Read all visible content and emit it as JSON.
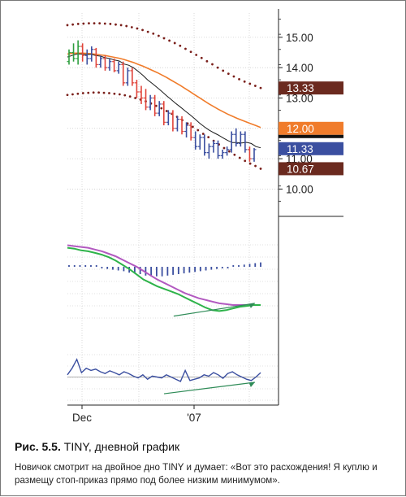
{
  "chart_data": [
    {
      "type": "bar",
      "panel": "price",
      "subtype": "ohlc",
      "x_labels": [
        "Dec",
        "'07"
      ],
      "y_ticks": [
        10.0,
        11.0,
        12.0,
        13.0,
        14.0,
        15.0
      ],
      "y_tick_labels": [
        "10.00",
        "11.00",
        "12.00",
        "13.00",
        "14.00",
        "15.00"
      ],
      "ylim": [
        9.1,
        15.8
      ],
      "price_tags": [
        {
          "label": "13.33",
          "value": 13.33,
          "color": "#6b2a1f"
        },
        {
          "label": "12.00",
          "value": 12.0,
          "color": "#f07c2b"
        },
        {
          "label": "11.33",
          "value": 11.33,
          "color": "#3b4fa0"
        },
        {
          "label": "10.67",
          "value": 10.67,
          "color": "#6b2a1f"
        }
      ],
      "bars": [
        {
          "o": 14.2,
          "h": 14.6,
          "l": 14.1,
          "c": 14.5,
          "color": "#2e9e3f"
        },
        {
          "o": 14.5,
          "h": 14.8,
          "l": 14.2,
          "c": 14.3,
          "color": "#2e9e3f"
        },
        {
          "o": 14.3,
          "h": 14.9,
          "l": 14.1,
          "c": 14.7,
          "color": "#2e9e3f"
        },
        {
          "o": 14.7,
          "h": 14.8,
          "l": 14.2,
          "c": 14.4,
          "color": "#e0443a"
        },
        {
          "o": 14.4,
          "h": 14.6,
          "l": 14.1,
          "c": 14.3,
          "color": "#3b4fa0"
        },
        {
          "o": 14.3,
          "h": 14.7,
          "l": 14.2,
          "c": 14.6,
          "color": "#3b4fa0"
        },
        {
          "o": 14.6,
          "h": 14.65,
          "l": 14.0,
          "c": 14.1,
          "color": "#e0443a"
        },
        {
          "o": 14.1,
          "h": 14.4,
          "l": 14.0,
          "c": 14.3,
          "color": "#3b4fa0"
        },
        {
          "o": 14.3,
          "h": 14.4,
          "l": 13.9,
          "c": 14.0,
          "color": "#e0443a"
        },
        {
          "o": 14.0,
          "h": 14.3,
          "l": 13.9,
          "c": 14.2,
          "color": "#3b4fa0"
        },
        {
          "o": 14.2,
          "h": 14.3,
          "l": 13.85,
          "c": 13.9,
          "color": "#e0443a"
        },
        {
          "o": 13.9,
          "h": 14.2,
          "l": 13.8,
          "c": 14.1,
          "color": "#3b4fa0"
        },
        {
          "o": 14.1,
          "h": 14.2,
          "l": 13.4,
          "c": 13.5,
          "color": "#e0443a"
        },
        {
          "o": 13.5,
          "h": 14.0,
          "l": 13.4,
          "c": 13.9,
          "color": "#3b4fa0"
        },
        {
          "o": 13.9,
          "h": 14.0,
          "l": 13.4,
          "c": 13.5,
          "color": "#e0443a"
        },
        {
          "o": 13.5,
          "h": 13.6,
          "l": 13.0,
          "c": 13.2,
          "color": "#e0443a"
        },
        {
          "o": 13.2,
          "h": 13.4,
          "l": 12.8,
          "c": 13.0,
          "color": "#e0443a"
        },
        {
          "o": 13.0,
          "h": 13.3,
          "l": 12.6,
          "c": 12.7,
          "color": "#e0443a"
        },
        {
          "o": 12.7,
          "h": 13.1,
          "l": 12.6,
          "c": 13.0,
          "color": "#3b4fa0"
        },
        {
          "o": 13.0,
          "h": 13.1,
          "l": 12.4,
          "c": 12.5,
          "color": "#e0443a"
        },
        {
          "o": 12.5,
          "h": 12.9,
          "l": 12.4,
          "c": 12.8,
          "color": "#3b4fa0"
        },
        {
          "o": 12.8,
          "h": 12.9,
          "l": 12.1,
          "c": 12.2,
          "color": "#e0443a"
        },
        {
          "o": 12.2,
          "h": 12.6,
          "l": 12.1,
          "c": 12.5,
          "color": "#3b4fa0"
        },
        {
          "o": 12.5,
          "h": 12.6,
          "l": 11.9,
          "c": 12.0,
          "color": "#e0443a"
        },
        {
          "o": 12.0,
          "h": 12.4,
          "l": 11.9,
          "c": 12.3,
          "color": "#3b4fa0"
        },
        {
          "o": 12.3,
          "h": 12.4,
          "l": 11.8,
          "c": 11.9,
          "color": "#e0443a"
        },
        {
          "o": 11.9,
          "h": 12.2,
          "l": 11.7,
          "c": 12.1,
          "color": "#3b4fa0"
        },
        {
          "o": 12.1,
          "h": 12.2,
          "l": 11.6,
          "c": 11.7,
          "color": "#e0443a"
        },
        {
          "o": 11.7,
          "h": 11.9,
          "l": 11.3,
          "c": 11.4,
          "color": "#3b4fa0"
        },
        {
          "o": 11.4,
          "h": 11.8,
          "l": 11.3,
          "c": 11.7,
          "color": "#3b4fa0"
        },
        {
          "o": 11.7,
          "h": 11.8,
          "l": 11.1,
          "c": 11.2,
          "color": "#3b4fa0"
        },
        {
          "o": 11.2,
          "h": 11.5,
          "l": 11.0,
          "c": 11.4,
          "color": "#3b4fa0"
        },
        {
          "o": 11.4,
          "h": 11.6,
          "l": 11.2,
          "c": 11.5,
          "color": "#3b4fa0"
        },
        {
          "o": 11.5,
          "h": 11.6,
          "l": 11.0,
          "c": 11.1,
          "color": "#3b4fa0"
        },
        {
          "o": 11.1,
          "h": 11.3,
          "l": 11.0,
          "c": 11.2,
          "color": "#3b4fa0"
        },
        {
          "o": 11.2,
          "h": 11.4,
          "l": 11.1,
          "c": 11.3,
          "color": "#3b4fa0"
        },
        {
          "o": 11.3,
          "h": 11.9,
          "l": 11.2,
          "c": 11.8,
          "color": "#3b4fa0"
        },
        {
          "o": 11.8,
          "h": 12.0,
          "l": 11.4,
          "c": 11.5,
          "color": "#3b4fa0"
        },
        {
          "o": 11.5,
          "h": 11.9,
          "l": 11.4,
          "c": 11.8,
          "color": "#3b4fa0"
        },
        {
          "o": 11.8,
          "h": 11.9,
          "l": 11.2,
          "c": 11.3,
          "color": "#3b4fa0"
        },
        {
          "o": 11.3,
          "h": 11.4,
          "l": 10.9,
          "c": 11.0,
          "color": "#e0443a"
        },
        {
          "o": 11.0,
          "h": 11.35,
          "l": 10.9,
          "c": 11.3,
          "color": "#3b4fa0"
        }
      ],
      "ema_slow": [
        14.45,
        14.47,
        14.48,
        14.48,
        14.47,
        14.46,
        14.44,
        14.42,
        14.4,
        14.37,
        14.34,
        14.31,
        14.27,
        14.22,
        14.17,
        14.11,
        14.05,
        13.98,
        13.91,
        13.84,
        13.76,
        13.68,
        13.59,
        13.5,
        13.41,
        13.31,
        13.21,
        13.11,
        13.01,
        12.91,
        12.81,
        12.72,
        12.63,
        12.55,
        12.47,
        12.4,
        12.33,
        12.27,
        12.21,
        12.15,
        12.09,
        12.03
      ],
      "ema_fast": [
        14.35,
        14.4,
        14.45,
        14.45,
        14.43,
        14.44,
        14.4,
        14.38,
        14.33,
        14.3,
        14.25,
        14.22,
        14.12,
        14.08,
        14.0,
        13.88,
        13.75,
        13.6,
        13.48,
        13.35,
        13.22,
        13.08,
        12.95,
        12.82,
        12.7,
        12.57,
        12.45,
        12.32,
        12.18,
        12.06,
        11.95,
        11.86,
        11.78,
        11.69,
        11.6,
        11.53,
        11.53,
        11.52,
        11.54,
        11.5,
        11.4,
        11.36
      ],
      "envelope_upper": [
        15.4,
        15.42,
        15.44,
        15.45,
        15.46,
        15.46,
        15.46,
        15.45,
        15.44,
        15.42,
        15.4,
        15.37,
        15.33,
        15.29,
        15.24,
        15.18,
        15.12,
        15.05,
        14.97,
        14.89,
        14.81,
        14.72,
        14.62,
        14.52,
        14.42,
        14.32,
        14.21,
        14.11,
        14.0,
        13.9,
        13.8,
        13.71,
        13.62,
        13.54,
        13.47,
        13.4,
        13.33
      ],
      "envelope_lower": [
        13.1,
        13.12,
        13.14,
        13.16,
        13.17,
        13.18,
        13.18,
        13.17,
        13.16,
        13.14,
        13.12,
        13.09,
        13.05,
        13.0,
        12.95,
        12.89,
        12.82,
        12.74,
        12.66,
        12.57,
        12.48,
        12.38,
        12.27,
        12.16,
        12.05,
        11.94,
        11.82,
        11.71,
        11.59,
        11.47,
        11.35,
        11.24,
        11.13,
        11.03,
        10.93,
        10.84,
        10.76,
        10.67
      ]
    },
    {
      "type": "line",
      "panel": "indicator-1",
      "ylim": [
        0,
        100
      ],
      "series": [
        {
          "values": [
            90,
            89,
            88,
            87,
            85,
            83,
            80,
            77,
            73,
            69,
            65,
            60,
            55,
            50,
            46,
            42,
            38,
            34,
            31,
            28,
            26,
            24,
            22,
            21,
            20,
            20,
            20,
            20,
            20
          ],
          "color": "#b259c0"
        },
        {
          "values": [
            87,
            86,
            84,
            83,
            81,
            79,
            76,
            72,
            67,
            62,
            56,
            50,
            46,
            42,
            39,
            36,
            33,
            29,
            25,
            21,
            17,
            14,
            13,
            14,
            16,
            18,
            19,
            20,
            20
          ],
          "color": "#2eb34a"
        }
      ],
      "histogram": [
        0,
        0,
        0,
        0,
        0,
        0,
        -2,
        -3,
        -4,
        -5,
        -6,
        -8,
        -9,
        -10,
        -12,
        -13,
        -13,
        -13,
        -12,
        -11,
        -10,
        -9,
        -8,
        -7,
        -6,
        -5,
        -4,
        -3,
        -2,
        -1,
        1,
        2,
        3,
        4,
        5,
        6
      ],
      "histogram_color": "#3b4fa0",
      "arrow": {
        "x_from": 0.55,
        "y_from": 7,
        "x_to": 0.97,
        "y_to": 22,
        "color": "#2e8b57"
      }
    },
    {
      "type": "line",
      "panel": "indicator-2",
      "ylim": [
        -60,
        60
      ],
      "series": [
        {
          "values": [
            5,
            20,
            40,
            10,
            20,
            15,
            18,
            12,
            8,
            14,
            10,
            5,
            12,
            8,
            2,
            -2,
            5,
            -5,
            2,
            0,
            -2,
            5,
            0,
            -5,
            -10,
            15,
            -8,
            -5,
            -2,
            5,
            2,
            10,
            5,
            -3,
            8,
            12,
            5,
            0,
            -5,
            -8,
            0,
            10
          ],
          "color": "#3b4fa0"
        }
      ],
      "arrow": {
        "x_from": 0.5,
        "y_from": -38,
        "x_to": 0.97,
        "y_to": -12,
        "color": "#2e8b57"
      }
    }
  ],
  "caption": {
    "figure_number": "Рис. 5.5.",
    "figure_title": "TINY, дневной график"
  },
  "description": "Новичок смотрит на двойное дно TINY и думает: «Вот это расхождения! Я куплю и размещу стоп-приказ прямо под более низким минимумом»."
}
